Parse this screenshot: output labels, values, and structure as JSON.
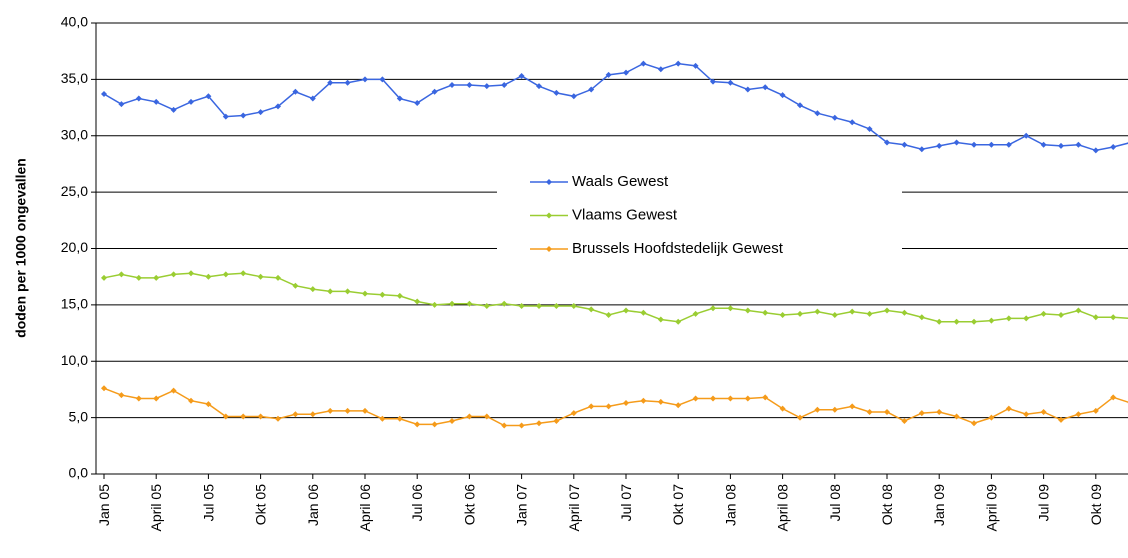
{
  "chart_data": {
    "type": "line",
    "ylabel": "doden per  1000 ongevallen",
    "categories": [
      "Jan 05",
      null,
      null,
      "April 05",
      null,
      null,
      "Jul 05",
      null,
      null,
      "Okt 05",
      null,
      null,
      "Jan 06",
      null,
      null,
      "April 06",
      null,
      null,
      "Jul 06",
      null,
      null,
      "Okt 06",
      null,
      null,
      "Jan 07",
      null,
      null,
      "April 07",
      null,
      null,
      "Jul 07",
      null,
      null,
      "Okt 07",
      null,
      null,
      "Jan 08",
      null,
      null,
      "April 08",
      null,
      null,
      "Jul 08",
      null,
      null,
      "Okt 08",
      null,
      null,
      "Jan 09",
      null,
      null,
      "April 09",
      null,
      null,
      "Jul 09",
      null,
      null,
      "Okt 09",
      null,
      null
    ],
    "series": [
      {
        "name": "Waals Gewest",
        "color": "#3a66e0",
        "values": [
          33.7,
          32.8,
          33.3,
          33.0,
          32.3,
          33.0,
          33.5,
          31.7,
          31.8,
          32.1,
          32.6,
          33.9,
          33.3,
          34.7,
          34.7,
          35.0,
          35.0,
          33.3,
          32.9,
          33.9,
          34.5,
          34.5,
          34.4,
          34.5,
          35.3,
          34.4,
          33.8,
          33.5,
          34.1,
          35.4,
          35.6,
          36.4,
          35.9,
          36.4,
          36.2,
          34.8,
          34.7,
          34.1,
          34.3,
          33.6,
          32.7,
          32.0,
          31.6,
          31.2,
          30.6,
          29.4,
          29.2,
          28.8,
          29.1,
          29.4,
          29.2,
          29.2,
          29.2,
          30.0,
          29.2,
          29.1,
          29.2,
          28.7,
          29.0,
          29.4
        ]
      },
      {
        "name": "Vlaams Gewest",
        "color": "#9acd32",
        "values": [
          17.4,
          17.7,
          17.4,
          17.4,
          17.7,
          17.8,
          17.5,
          17.7,
          17.8,
          17.5,
          17.4,
          16.7,
          16.4,
          16.2,
          16.2,
          16.0,
          15.9,
          15.8,
          15.3,
          15.0,
          15.1,
          15.1,
          14.9,
          15.1,
          14.9,
          14.9,
          14.9,
          14.9,
          14.6,
          14.1,
          14.5,
          14.3,
          13.7,
          13.5,
          14.2,
          14.7,
          14.7,
          14.5,
          14.3,
          14.1,
          14.2,
          14.4,
          14.1,
          14.4,
          14.2,
          14.5,
          14.3,
          13.9,
          13.5,
          13.5,
          13.5,
          13.6,
          13.8,
          13.8,
          14.2,
          14.1,
          14.5,
          13.9,
          13.9,
          13.8
        ]
      },
      {
        "name": "Brussels Hoofdstedelijk Gewest",
        "color": "#f59b1a",
        "values": [
          7.6,
          7.0,
          6.7,
          6.7,
          7.4,
          6.5,
          6.2,
          5.1,
          5.1,
          5.1,
          4.9,
          5.3,
          5.3,
          5.6,
          5.6,
          5.6,
          4.9,
          4.9,
          4.4,
          4.4,
          4.7,
          5.1,
          5.1,
          4.3,
          4.3,
          4.5,
          4.7,
          5.4,
          6.0,
          6.0,
          6.3,
          6.5,
          6.4,
          6.1,
          6.7,
          6.7,
          6.7,
          6.7,
          6.8,
          5.8,
          5.0,
          5.7,
          5.7,
          6.0,
          5.5,
          5.5,
          4.7,
          5.4,
          5.5,
          5.1,
          4.5,
          5.0,
          5.8,
          5.3,
          5.5,
          4.8,
          5.3,
          5.6,
          6.8,
          6.3
        ]
      }
    ],
    "ylim": [
      0,
      40
    ],
    "yticks": [
      {
        "value": 0,
        "label": "0,0"
      },
      {
        "value": 5,
        "label": "5,0"
      },
      {
        "value": 10,
        "label": "10,0"
      },
      {
        "value": 15,
        "label": "15,0"
      },
      {
        "value": 20,
        "label": "20,0"
      },
      {
        "value": 25,
        "label": "25,0"
      },
      {
        "value": 30,
        "label": "30,0"
      },
      {
        "value": 35,
        "label": "35,0"
      },
      {
        "value": 40,
        "label": "40,0"
      }
    ],
    "grid": true,
    "legend": "center"
  }
}
